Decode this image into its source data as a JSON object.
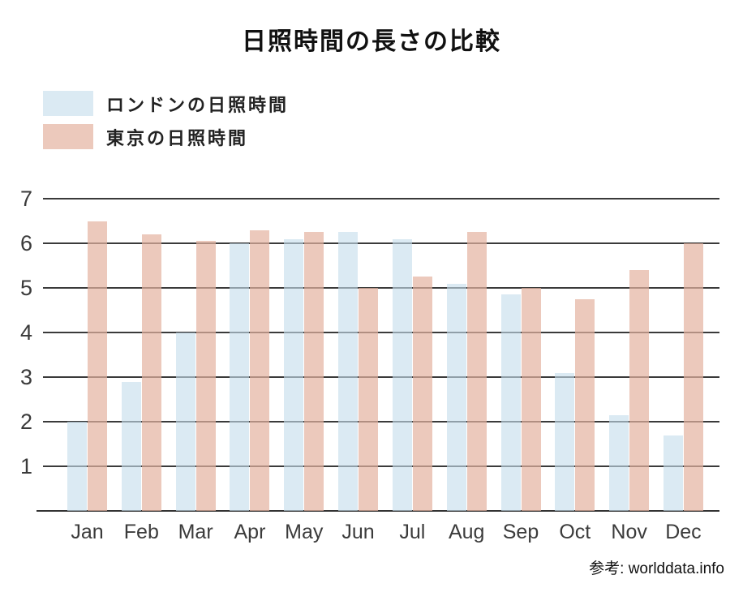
{
  "title": "日照時間の長さの比較",
  "legend": {
    "items": [
      {
        "label": "ロンドンの日照時間",
        "color": "#dbeaf3"
      },
      {
        "label": "東京の日照時間",
        "color": "#ecc9bc"
      }
    ]
  },
  "footer": {
    "source": "参考: worlddata.info"
  },
  "chart_data": {
    "type": "bar",
    "title": "日照時間の長さの比較",
    "categories": [
      "Jan",
      "Feb",
      "Mar",
      "Apr",
      "May",
      "Jun",
      "Jul",
      "Aug",
      "Sep",
      "Oct",
      "Nov",
      "Dec"
    ],
    "series": [
      {
        "name": "ロンドンの日照時間",
        "color": "#dbeaf3",
        "values": [
          2.0,
          2.9,
          4.0,
          6.0,
          6.1,
          6.25,
          6.1,
          5.1,
          4.85,
          3.1,
          2.15,
          1.7
        ]
      },
      {
        "name": "東京の日照時間",
        "color": "#ecc9bc",
        "values": [
          6.5,
          6.2,
          6.05,
          6.3,
          6.25,
          5.0,
          5.25,
          6.25,
          5.0,
          4.75,
          5.4,
          6.0
        ]
      }
    ],
    "xlabel": "",
    "ylabel": "",
    "ylim": [
      0,
      7
    ],
    "yticks": [
      1,
      2,
      3,
      4,
      5,
      6,
      7
    ],
    "grid": true,
    "gridline_color": "#3a3a3a",
    "legend_position": "top-left",
    "annotations": [
      "参考: worlddata.info"
    ]
  }
}
